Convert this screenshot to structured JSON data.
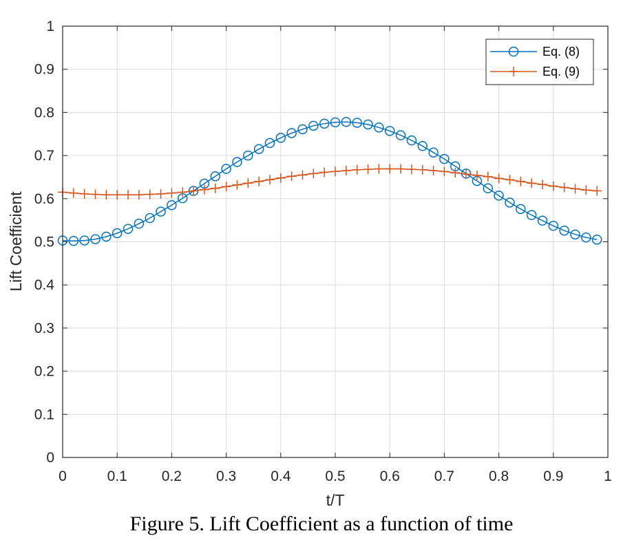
{
  "caption": "Figure 5. Lift Coefficient as a function of time",
  "chart_data": {
    "type": "line",
    "xlabel": "t/T",
    "ylabel": "Lift Coefficient",
    "xlim": [
      0,
      1
    ],
    "ylim": [
      0,
      1
    ],
    "xticks": [
      "0",
      "0.1",
      "0.2",
      "0.3",
      "0.4",
      "0.5",
      "0.6",
      "0.7",
      "0.8",
      "0.9",
      "1"
    ],
    "yticks": [
      "0",
      "0.1",
      "0.2",
      "0.3",
      "0.4",
      "0.5",
      "0.6",
      "0.7",
      "0.8",
      "0.9",
      "1"
    ],
    "grid": true,
    "legend_position": "top-right",
    "x": [
      0,
      0.02,
      0.04,
      0.06,
      0.08,
      0.1,
      0.12,
      0.14,
      0.16,
      0.18,
      0.2,
      0.22,
      0.24,
      0.26,
      0.28,
      0.3,
      0.32,
      0.34,
      0.36,
      0.38,
      0.4,
      0.42,
      0.44,
      0.46,
      0.48,
      0.5,
      0.52,
      0.54,
      0.56,
      0.58,
      0.6,
      0.62,
      0.64,
      0.66,
      0.68,
      0.7,
      0.72,
      0.74,
      0.76,
      0.78,
      0.8,
      0.82,
      0.84,
      0.86,
      0.88,
      0.9,
      0.92,
      0.94,
      0.96,
      0.98
    ],
    "series": [
      {
        "name": "Eq. (8)",
        "color": "#0072BD",
        "marker": "circle",
        "values": [
          0.503,
          0.502,
          0.503,
          0.506,
          0.512,
          0.52,
          0.53,
          0.542,
          0.555,
          0.57,
          0.585,
          0.601,
          0.618,
          0.635,
          0.652,
          0.669,
          0.685,
          0.7,
          0.715,
          0.729,
          0.741,
          0.752,
          0.761,
          0.769,
          0.774,
          0.777,
          0.778,
          0.776,
          0.772,
          0.765,
          0.757,
          0.747,
          0.735,
          0.722,
          0.707,
          0.692,
          0.675,
          0.658,
          0.641,
          0.624,
          0.607,
          0.591,
          0.576,
          0.562,
          0.549,
          0.537,
          0.526,
          0.517,
          0.51,
          0.505
        ]
      },
      {
        "name": "Eq. (9)",
        "color": "#D95319",
        "marker": "plus",
        "values": [
          0.615,
          0.613,
          0.611,
          0.61,
          0.609,
          0.609,
          0.609,
          0.609,
          0.61,
          0.611,
          0.613,
          0.615,
          0.618,
          0.621,
          0.624,
          0.628,
          0.632,
          0.636,
          0.64,
          0.644,
          0.648,
          0.652,
          0.655,
          0.658,
          0.661,
          0.663,
          0.665,
          0.667,
          0.668,
          0.669,
          0.669,
          0.669,
          0.668,
          0.667,
          0.665,
          0.663,
          0.66,
          0.657,
          0.654,
          0.651,
          0.647,
          0.644,
          0.64,
          0.636,
          0.633,
          0.629,
          0.626,
          0.623,
          0.62,
          0.618
        ]
      }
    ]
  }
}
